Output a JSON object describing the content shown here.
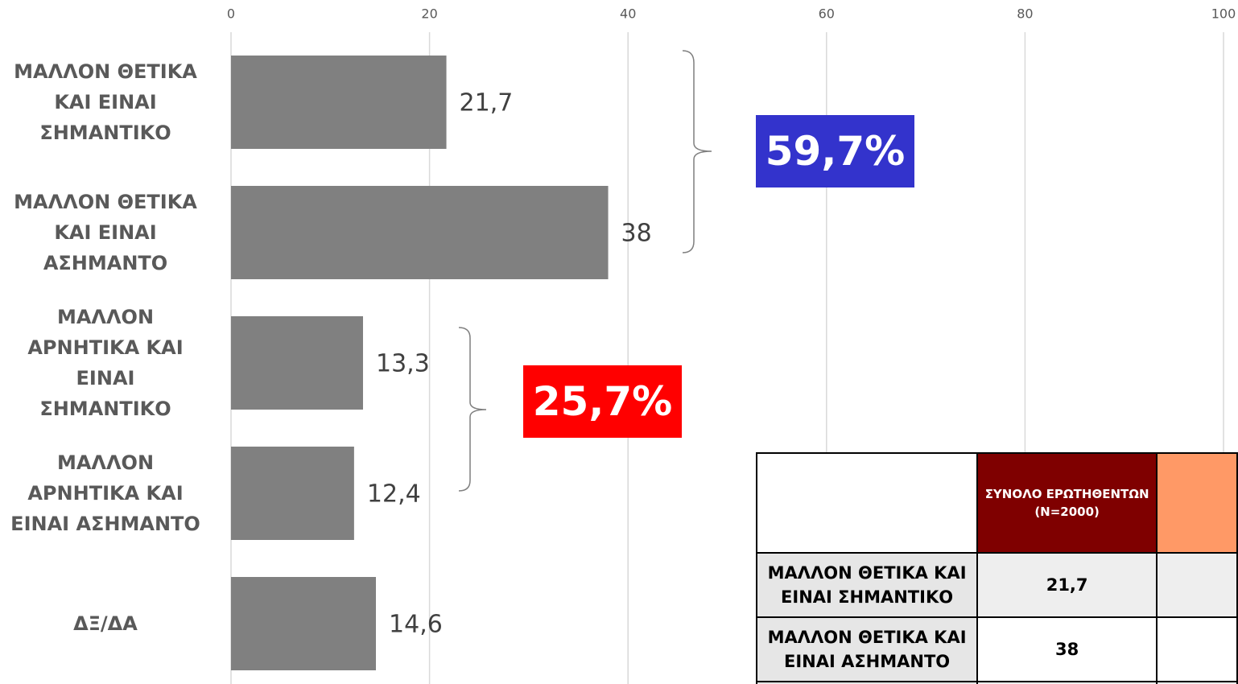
{
  "chart_data": {
    "type": "bar",
    "orientation": "horizontal",
    "categories": [
      "ΜΑΛΛΟΝ ΘΕΤΙΚΑ ΚΑΙ ΕΙΝΑΙ ΣΗΜΑΝΤΙΚΟ",
      "ΜΑΛΛΟΝ ΘΕΤΙΚΑ ΚΑΙ ΕΙΝΑΙ ΑΣΗΜΑΝΤΟ",
      "ΜΑΛΛΟΝ ΑΡΝΗΤΙΚΑ ΚΑΙ ΕΙΝΑΙ ΣΗΜΑΝΤΙΚΟ",
      "ΜΑΛΛΟΝ ΑΡΝΗΤΙΚΑ ΚΑΙ ΕΙΝΑΙ ΑΣΗΜΑΝΤΟ",
      "ΔΞ/ΔΑ"
    ],
    "values": [
      21.7,
      38,
      13.3,
      12.4,
      14.6
    ],
    "value_labels": [
      "21,7",
      "38",
      "13,3",
      "12,4",
      "14,6"
    ],
    "color": "#808080",
    "xlim": [
      0,
      100
    ],
    "xticks": [
      0,
      20,
      40,
      60,
      80,
      100
    ],
    "grid": true,
    "annotations": [
      {
        "text": "59,7%",
        "color": "#3333cc"
      },
      {
        "text": "25,7%",
        "color": "#ff0000"
      }
    ]
  },
  "table": {
    "header": [
      "ΣΥΝΟΛΟ ΕΡΩΤΗΘΕΝΤΩΝ (N=2000)"
    ],
    "rows": [
      [
        "ΜΑΛΛΟΝ ΘΕΤΙΚΑ ΚΑΙ ΕΙΝΑΙ ΣΗΜΑΝΤΙΚΟ",
        "21,7"
      ],
      [
        "ΜΑΛΛΟΝ ΘΕΤΙΚΑ ΚΑΙ ΕΙΝΑΙ ΑΣΗΜΑΝΤΟ",
        "38"
      ]
    ]
  }
}
